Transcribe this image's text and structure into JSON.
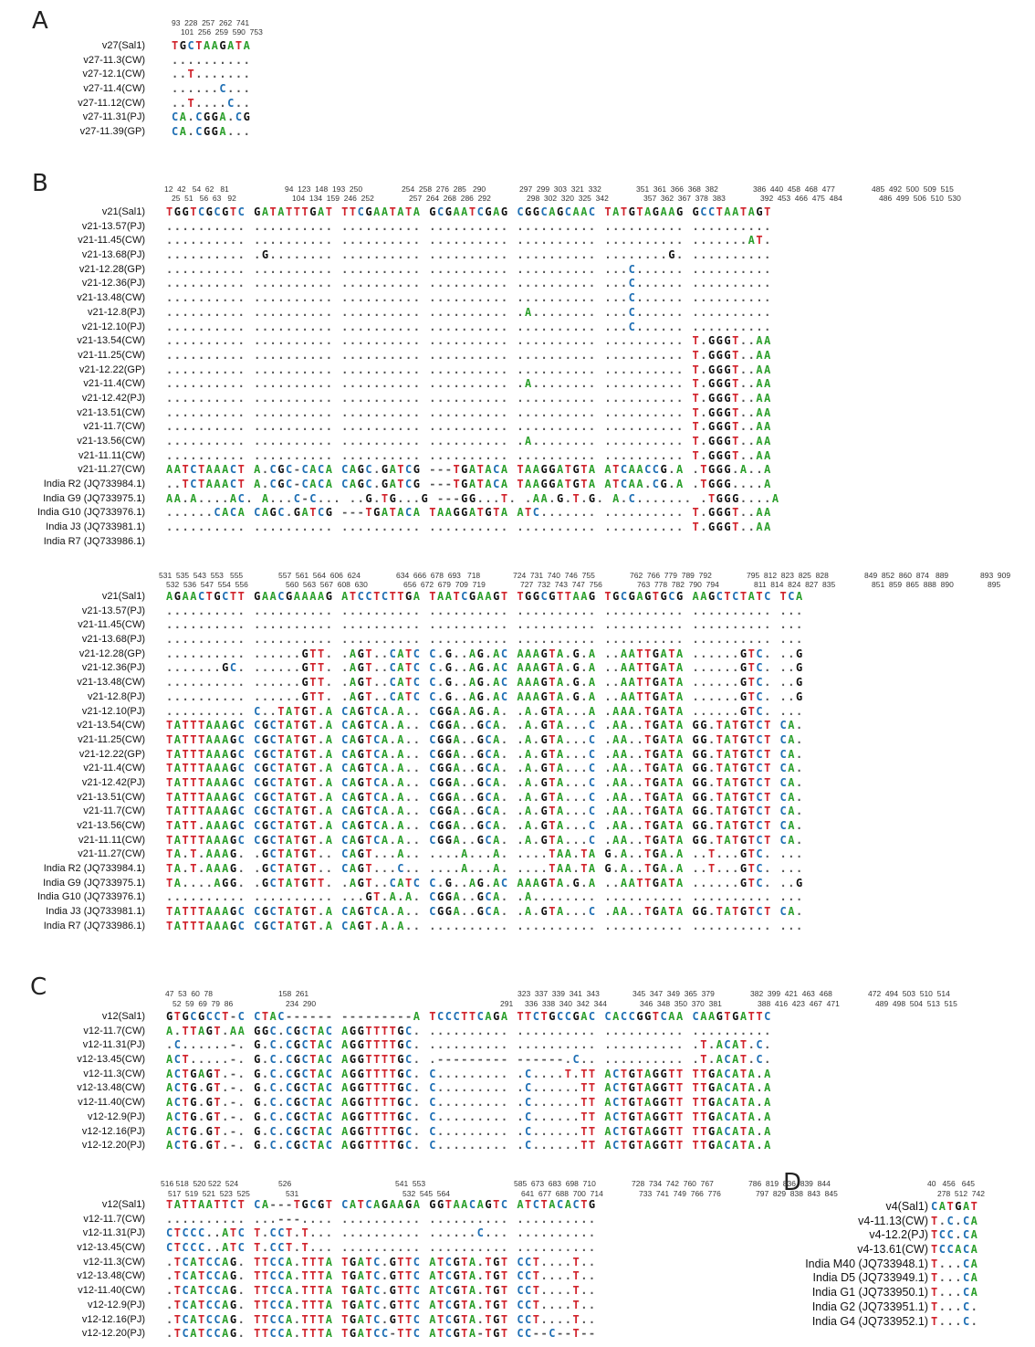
{
  "panels": {
    "a": "A",
    "b": "B",
    "c": "C",
    "d": "D"
  },
  "colors": {
    "A": "#2da02d",
    "C": "#1f6fb4",
    "G": "#111111",
    "T": "#d0222b"
  },
  "panelA": {
    "pos_top": "93  228  257  262  741",
    "pos_bot": "101  256  259  590  753",
    "names": [
      "v27(Sal1)",
      "v27-11.3(CW)",
      "v27-12.1(CW)",
      "v27-11.4(CW)",
      "v27-11.12(CW)",
      "v27-11.31(PJ)",
      "v27-11.39(GP)"
    ],
    "seqs": [
      "TGCTAAGATA",
      "..........",
      "..T.......",
      "......C...",
      "..T....C..",
      "CA.CGGA.CG",
      "CA.CGGA..."
    ]
  },
  "panelB1": {
    "pos_top": [
      "12  42   54  62   81",
      "94  123  148  193  250",
      "254  258  276  285   290",
      "297  299  303  321  332",
      "351  361  366  368  382",
      "386  440  458  468  477",
      "485  492  500  509  515"
    ],
    "pos_bot": [
      "25  51   56  63   92",
      "104  134  159  246  252",
      "257  264  268  286  292",
      "298  302  320  325  342",
      "357  362  367  378  383",
      "392  453  466  475  484",
      "486  499  506  510  530"
    ],
    "names": [
      "v21(Sal1)",
      "v21-13.57(PJ)",
      "v21-11.45(CW)",
      "v21-13.68(PJ)",
      "v21-12.28(GP)",
      "v21-12.36(PJ)",
      "v21-13.48(CW)",
      "v21-12.8(PJ)",
      "v21-12.10(PJ)",
      "v21-13.54(CW)",
      "v21-11.25(CW)",
      "v21-12.22(GP)",
      "v21-11.4(CW)",
      "v21-12.42(PJ)",
      "v21-13.51(CW)",
      "v21-11.7(CW)",
      "v21-13.56(CW)",
      "v21-11.11(CW)",
      "v21-11.27(CW)",
      "India R2 (JQ733984.1)",
      "India G9 (JQ733975.1)",
      "India G10 (JQ733976.1)",
      "India J3 (JQ733981.1)",
      "India R7 (JQ733986.1)"
    ],
    "seqs": [
      "TGGTCGCGTC GATATTTGAT TTCGAATATA GCGAATCGAG CGGCAGCAAC TATGTAGAAG GCCTAATAGT",
      ".......... .......... .......... .......... .......... .......... ..........",
      ".......... .......... .......... .......... .......... .......... .......AT.",
      ".......... .G........ .......... .......... .......... ........G. ..........",
      ".......... .......... .......... .......... .......... ...C...... ..........",
      ".......... .......... .......... .......... .......... ...C...... ..........",
      ".......... .......... .......... .......... .......... ...C...... ..........",
      ".......... .......... .......... .......... .A........ ...C...... ..........",
      ".......... .......... .......... .......... .......... ...C...... ..........",
      ".......... .......... .......... .......... .......... .......... T.GGGT..AA",
      ".......... .......... .......... .......... .......... .......... T.GGGT..AA",
      ".......... .......... .......... .......... .......... .......... T.GGGT..AA",
      ".......... .......... .......... .......... .A........ .......... T.GGGT..AA",
      ".......... .......... .......... .......... .......... .......... T.GGGT..AA",
      ".......... .......... .......... .......... .......... .......... T.GGGT..AA",
      ".......... .......... .......... .......... .......... .......... T.GGGT..AA",
      ".......... .......... .......... .......... .A........ .......... T.GGGT..AA",
      ".......... .......... .......... .......... .......... .......... T.GGGT..AA",
      "AATCTAAACT A.CGC-CACA CAGC.GATCG ---TGATACA TAAGGATGTA ATCAACCG.A .TGGG.A..A",
      "..TCTAAACT A.CGC-CACA CAGC.GATCG ---TGATACA TAAGGATGTA ATCAA.CG.A .TGGG....A",
      "AA.A....AC. A...C-C... ..G.TG...G ---GG...T. .AA.G.T.G. A.C....... .TGGG....A",
      "......CACA CAGC.GATCG ---TGATACA TAAGGATGTA ATC....... .......... T.GGGT..AA",
      ".......... .......... .......... .......... .......... .......... T.GGGT..AA"
    ]
  },
  "panelB2": {
    "pos_top": [
      "531  535  543  553   555",
      "557  561  564  606  624",
      "634  666  678  693   718",
      "724  731  740  746  755",
      "762  766  779  789  792",
      "795  812  823  825  828",
      "849  852  860  874   889",
      "893  909"
    ],
    "pos_bot": [
      "532  536  547  554  556",
      "560  563  567  608  630",
      "656  672  679  709  719",
      "727  732  743  747  756",
      "763  778  782  790  794",
      "811  814  824  827  835",
      "851  859  865  888  890",
      "895"
    ],
    "names": [
      "v21(Sal1)",
      "v21-13.57(PJ)",
      "v21-11.45(CW)",
      "v21-13.68(PJ)",
      "v21-12.28(GP)",
      "v21-12.36(PJ)",
      "v21-13.48(CW)",
      "v21-12.8(PJ)",
      "v21-12.10(PJ)",
      "v21-13.54(CW)",
      "v21-11.25(CW)",
      "v21-12.22(GP)",
      "v21-11.4(CW)",
      "v21-12.42(PJ)",
      "v21-13.51(CW)",
      "v21-11.7(CW)",
      "v21-13.56(CW)",
      "v21-11.11(CW)",
      "v21-11.27(CW)",
      "India R2 (JQ733984.1)",
      "India G9 (JQ733975.1)",
      "India G10 (JQ733976.1)",
      "India J3 (JQ733981.1)",
      "India R7 (JQ733986.1)"
    ],
    "seqs": [
      "AGAACTGCTT GAACGAAAAG ATCCTCTTGA TAATCGAAGT TGGCGTTAAG TGCGAGTGCG AAGCTCTATC TCA",
      ".......... .......... .......... .......... .......... .......... .......... ...",
      ".......... .......... .......... .......... .......... .......... .......... ...",
      ".......... .......... .......... .......... .......... .......... .......... ...",
      ".......... ......GTT. .AGT..CATC C.G..AG.AC AAAGTA.G.A ..AATTGATA ......GTC. ..G",
      ".......GC. ......GTT. .AGT..CATC C.G..AG.AC AAAGTA.G.A ..AATTGATA ......GTC. ..G",
      ".......... ......GTT. .AGT..CATC C.G..AG.AC AAAGTA.G.A ..AATTGATA ......GTC. ..G",
      ".......... ......GTT. .AGT..CATC C.G..AG.AC AAAGTA.G.A ..AATTGATA ......GTC. ..G",
      ".......... C..TATGT.A CAGTCA.A.. CGGA.AG.A. .A.GTA...A .AAA.TGATA ......GTC. ...",
      "TATTTAAAGC CGCTATGT.A CAGTCA.A.. CGGA..GCA. .A.GTA...C .AA..TGATA GG.TATGTCT CA.",
      "TATTTAAAGC CGCTATGT.A CAGTCA.A.. CGGA..GCA. .A.GTA...C .AA..TGATA GG.TATGTCT CA.",
      "TATTTAAAGC CGCTATGT.A CAGTCA.A.. CGGA..GCA. .A.GTA...C .AA..TGATA GG.TATGTCT CA.",
      "TATTTAAAGC CGCTATGT.A CAGTCA.A.. CGGA..GCA. .A.GTA...C .AA..TGATA GG.TATGTCT CA.",
      "TATTTAAAGC CGCTATGT.A CAGTCA.A.. CGGA..GCA. .A.GTA...C .AA..TGATA GG.TATGTCT CA.",
      "TATTTAAAGC CGCTATGT.A CAGTCA.A.. CGGA..GCA. .A.GTA...C .AA..TGATA GG.TATGTCT CA.",
      "TATTTAAAGC CGCTATGT.A CAGTCA.A.. CGGA..GCA. .A.GTA...C .AA..TGATA GG.TATGTCT CA.",
      "TATT.AAAGC CGCTATGT.A CAGTCA.A.. CGGA..GCA. .A.GTA...C .AA..TGATA GG.TATGTCT CA.",
      "TATTTAAAGC CGCTATGT.A CAGTCA.A.. CGGA..GCA. .A.GTA...C .AA..TGATA GG.TATGTCT CA.",
      "TA.T.AAAG. .GCTATGT.. CAGT...A.. ....A...A. ....TAA.TA G.A..TGA.A ..T...GTC. ...",
      "TA.T.AAAG. .GCTATGT.. CAGT...C.. ....A...A. ....TAA.TA G.A..TGA.A ..T...GTC. ...",
      "TA....AGG. .GCTATGTT. .AGT..CATC C.G..AG.AC AAAGTA.G.A ..AATTGATA ......GTC. ..G",
      ".......... .......... ...GT.A.A. CGGA..GCA. .A........ .......... .......... ...",
      "TATTTAAAGC CGCTATGT.A CAGTCA.A.. CGGA..GCA. .A.GTA...C .AA..TGATA GG.TATGTCT CA.",
      "TATTTAAAGC CGCTATGT.A CAGT.A.A.. .......... .......... .......... .......... ..."
    ]
  },
  "panelC1": {
    "pos_top": [
      "47  53  60  78",
      "158  261",
      "",
      "323  337  339  341  343",
      "345  347  349  365  379",
      "382  399  421  463  468",
      "472  494  503  510  514"
    ],
    "pos_bot": [
      "52  59  69  79  86",
      "234  290",
      "291",
      "336  338  340  342  344",
      "346  348  350  370  381",
      "388  416  423  467  471",
      "489  498  504  513  515"
    ],
    "names": [
      "v12(Sal1)",
      "v12-11.7(CW)",
      "v12-11.31(PJ)",
      "v12-13.45(CW)",
      "v12-11.3(CW)",
      "v12-13.48(CW)",
      "v12-11.40(CW)",
      "v12-12.9(PJ)",
      "v12-12.16(PJ)",
      "v12-12.20(PJ)"
    ],
    "seqs": [
      "GTGCGCCT-C CTAC------ ---------A TCCCTTCAGA TTCTGCCGAC CACCGGTCAA CAAGTGATTC",
      "A.TTAGT.AA GGC.CGCTAC AGGTTTTGC. .......... .......... .......... ..........",
      ".C......-. G.C.CGCTAC AGGTTTTGC. .......... .......... .......... .T.ACAT.C.",
      "ACT.....-. G.C.CGCTAC AGGTTTTGC. .--------- ------.C.. .......... .T.ACAT.C.",
      "ACTGAGT.-. G.C.CGCTAC AGGTTTTGC. C......... .C....T.TT ACTGTAGGTT TTGACATA.A",
      "ACTG.GT.-. G.C.CGCTAC AGGTTTTGC. C......... .C......TT ACTGTAGGTT TTGACATA.A",
      "ACTG.GT.-. G.C.CGCTAC AGGTTTTGC. C......... .C......TT ACTGTAGGTT TTGACATA.A",
      "ACTG.GT.-. G.C.CGCTAC AGGTTTTGC. C......... .C......TT ACTGTAGGTT TTGACATA.A",
      "ACTG.GT.-. G.C.CGCTAC AGGTTTTGC. C......... .C......TT ACTGTAGGTT TTGACATA.A",
      "ACTG.GT.-. G.C.CGCTAC AGGTTTTGC. C......... .C......TT ACTGTAGGTT TTGACATA.A"
    ]
  },
  "panelC2": {
    "pos_top": [
      "516 518  520 522  524",
      "526",
      "541  553",
      "585  673  683  698  710",
      "728  734  742  760  767",
      "786  819  836  839  844"
    ],
    "pos_bot": [
      "517  519  521  523  525",
      "531",
      "532  545  564",
      "641  677  688  700  714",
      "733  741  749  766  776",
      "797  829  838  843  845"
    ],
    "names": [
      "v12(Sal1)",
      "v12-11.7(CW)",
      "v12-11.31(PJ)",
      "v12-13.45(CW)",
      "v12-11.3(CW)",
      "v12-13.48(CW)",
      "v12-11.40(CW)",
      "v12-12.9(PJ)",
      "v12-12.16(PJ)",
      "v12-12.20(PJ)"
    ],
    "seqs": [
      "TATTAATTCT CA---TGCGT CATCAGAAGA GGTAACAGTC ATCTACACTG",
      ".......... ...---.... .......... .......... ..........",
      "CTCCC..ATC T.CCT.T... .......... ......C... ..........",
      "CTCCC..ATC T.CCT.T... .......... .......... ..........",
      ".TCATCCAG. TTCCA.TTTA TGATC.GTTC ATCGTA.TGT CCT....T..",
      ".TCATCCAG. TTCCA.TTTA TGATC.GTTC ATCGTA.TGT CCT....T..",
      ".TCATCCAG. TTCCA.TTTA TGATC.GTTC ATCGTA.TGT CCT....T..",
      ".TCATCCAG. TTCCA.TTTA TGATC.GTTC ATCGTA.TGT CCT....T..",
      ".TCATCCAG. TTCCA.TTTA TGATC.GTTC ATCGTA.TGT CCT....T..",
      ".TCATCCAG. TTCCA.TTTA TGATCC-TTC ATCGTA-TGT CC--C--T--"
    ]
  },
  "panelD": {
    "pos_top": "40   456   645",
    "pos_bot": "278  512  742",
    "names": [
      "v4(Sal1)",
      "v4-11.13(CW)",
      "v4-12.2(PJ)",
      "v4-13.61(CW)",
      "India M40 (JQ733948.1)",
      "India D5 (JQ733949.1)",
      "India G1 (JQ733950.1)",
      "India G2 (JQ733951.1)",
      "India G4 (JQ733952.1)"
    ],
    "seqs": [
      "CATGAT",
      "T.C.CA",
      "TCC.CA",
      "TCCACA",
      "T...CA",
      "T...CA",
      "T...CA",
      "T...C.",
      "T...C."
    ]
  }
}
